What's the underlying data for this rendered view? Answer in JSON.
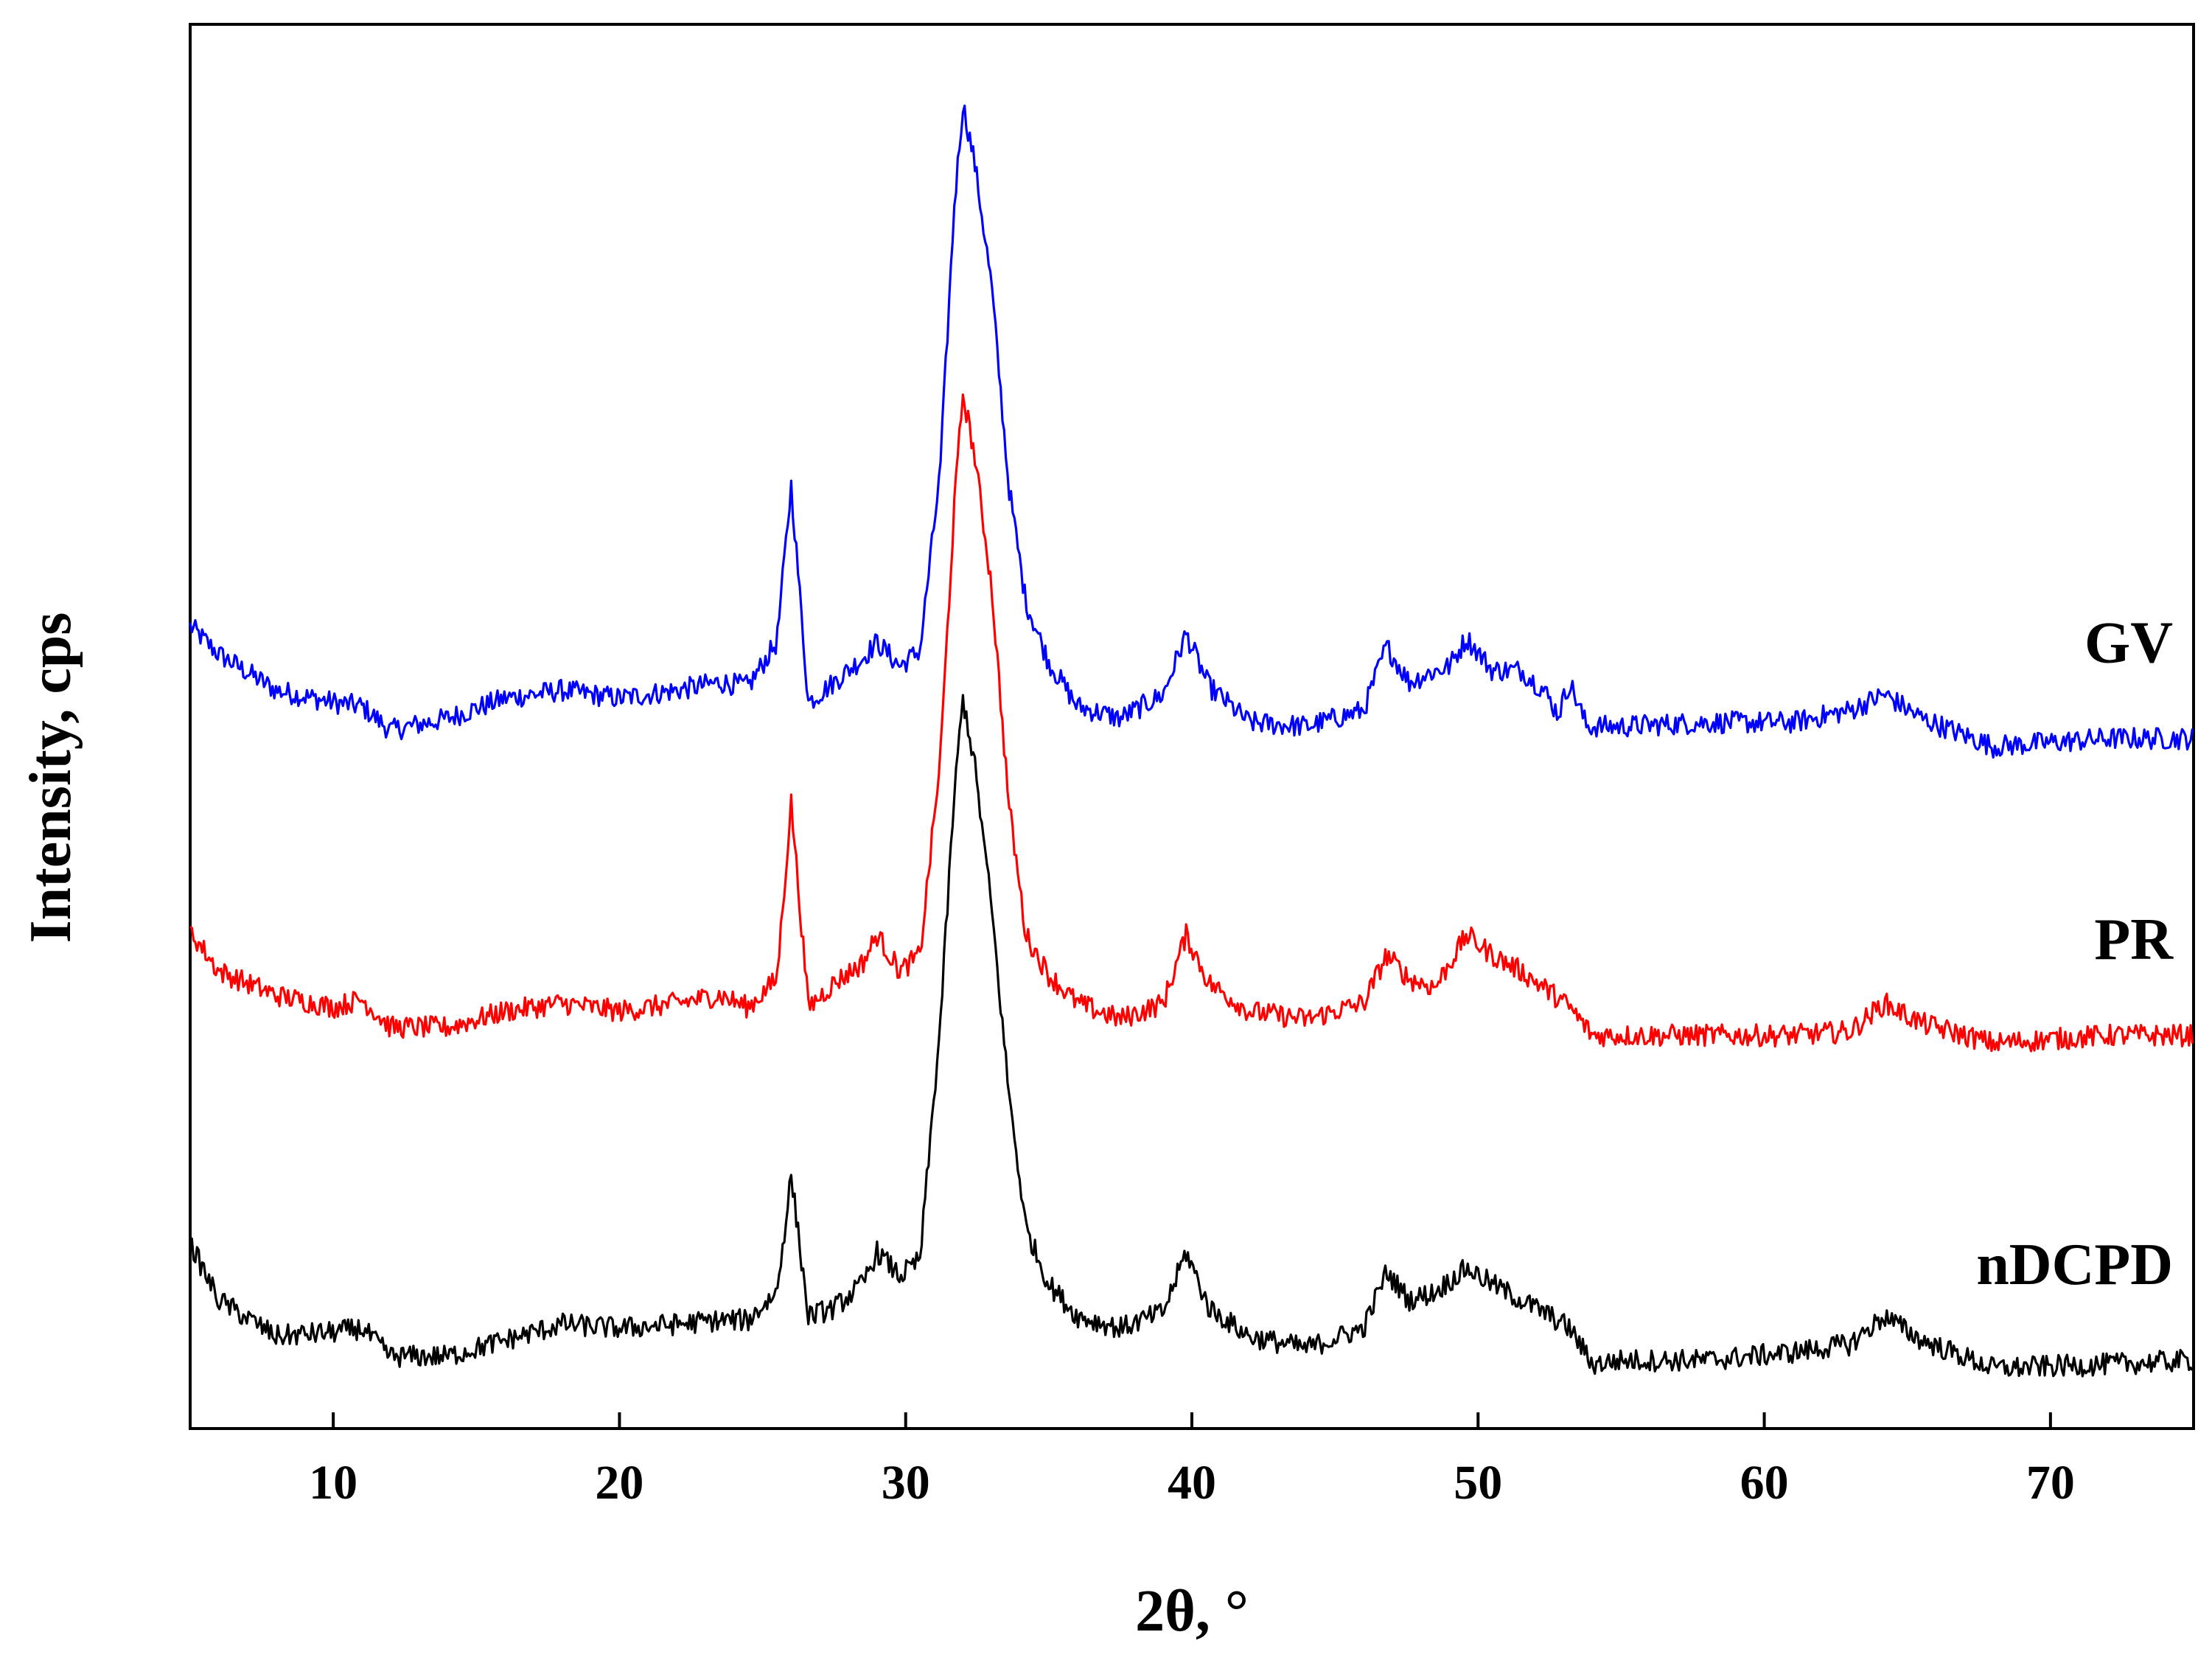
{
  "chart_data": {
    "type": "line",
    "xlabel": "2θ, °",
    "ylabel": "Intensity, cps",
    "xlim": [
      5,
      75
    ],
    "xticks": [
      10,
      20,
      30,
      40,
      50,
      60,
      70
    ],
    "yticks_shown": false,
    "grid": false,
    "legend": "none",
    "series": [
      {
        "name": "GV",
        "color": "#0000ff",
        "x": [
          5,
          6,
          8,
          10,
          11,
          12,
          14,
          16,
          18,
          20,
          22,
          23.5,
          24.5,
          25.5,
          26,
          26.6,
          27.5,
          28.5,
          29,
          29.8,
          30.5,
          31.2,
          31.7,
          32,
          32.4,
          33,
          33.6,
          34.2,
          35,
          36,
          37.5,
          39,
          39.8,
          40.6,
          42,
          44,
          46,
          46.8,
          47.6,
          48.2,
          49,
          49.6,
          50.5,
          51.5,
          52.3,
          52.8,
          53.2,
          53.8,
          55,
          58,
          61,
          63,
          64.2,
          65.5,
          68,
          72,
          75
        ],
        "y": [
          19.0,
          18.3,
          17.4,
          17.1,
          17.0,
          16.4,
          16.7,
          17.2,
          17.4,
          17.2,
          17.4,
          17.6,
          17.5,
          18.6,
          22.5,
          17.1,
          17.6,
          18.2,
          18.6,
          18.0,
          18.4,
          22.8,
          29.5,
          32.0,
          30.6,
          27.5,
          22.5,
          19.6,
          18.1,
          17.0,
          16.7,
          17.3,
          18.8,
          17.5,
          16.6,
          16.5,
          16.9,
          18.5,
          17.6,
          17.8,
          18.0,
          18.7,
          17.9,
          17.9,
          17.4,
          16.8,
          17.6,
          16.5,
          16.5,
          16.6,
          16.6,
          16.9,
          17.3,
          16.7,
          16.0,
          16.2,
          16.2
        ]
      },
      {
        "name": "PR",
        "color": "#ff0000",
        "x": [
          5,
          6,
          8,
          10,
          11,
          12,
          14,
          16,
          18,
          20,
          22,
          23.5,
          24.5,
          25.5,
          26,
          26.6,
          27.5,
          28.5,
          29,
          29.8,
          30.5,
          31.2,
          31.7,
          32,
          32.4,
          33,
          33.6,
          34.2,
          35,
          36,
          37.5,
          39,
          39.8,
          40.6,
          42,
          44,
          46,
          46.8,
          47.6,
          48.5,
          49.6,
          50.5,
          51.5,
          52.3,
          53.2,
          54,
          55,
          58,
          61,
          63,
          64.2,
          65.5,
          68,
          72,
          75
        ],
        "y": [
          11.4,
          10.4,
          9.8,
          9.5,
          9.7,
          9.0,
          9.0,
          9.4,
          9.6,
          9.4,
          9.6,
          9.8,
          9.5,
          10.2,
          14.6,
          9.5,
          10.1,
          10.6,
          11.3,
          10.4,
          10.8,
          15.6,
          22.0,
          24.8,
          23.3,
          20.0,
          14.6,
          11.3,
          10.3,
          9.6,
          9.2,
          9.6,
          11.3,
          10.1,
          9.4,
          9.2,
          9.6,
          10.8,
          10.2,
          10.0,
          11.3,
          10.8,
          10.4,
          10.0,
          9.5,
          8.8,
          8.8,
          8.8,
          8.8,
          8.9,
          9.6,
          9.1,
          8.6,
          8.8,
          8.8
        ]
      },
      {
        "name": "nDCPD",
        "color": "#000000",
        "x": [
          5,
          6,
          8,
          10,
          11,
          12,
          14,
          16,
          18,
          20,
          22,
          23.5,
          24.5,
          25.5,
          26,
          26.6,
          27.5,
          28.5,
          29,
          29.8,
          30.5,
          31.2,
          31.7,
          32,
          32.4,
          33,
          33.6,
          34.2,
          35,
          36,
          37.5,
          39,
          39.8,
          40.6,
          42,
          44,
          46,
          46.8,
          47.6,
          48.5,
          49.6,
          50.5,
          51.5,
          52.3,
          53.2,
          54,
          55,
          58,
          61,
          63,
          64.2,
          65.5,
          68,
          72,
          75
        ],
        "y": [
          3.6,
          2.2,
          1.3,
          1.4,
          1.5,
          0.8,
          0.8,
          1.2,
          1.6,
          1.5,
          1.6,
          1.7,
          1.7,
          2.4,
          5.3,
          1.8,
          2.0,
          2.6,
          3.4,
          2.8,
          3.2,
          9.0,
          14.8,
          17.2,
          15.6,
          12.0,
          7.4,
          4.0,
          2.6,
          1.8,
          1.5,
          1.9,
          3.4,
          2.0,
          1.3,
          1.0,
          1.5,
          2.9,
          2.2,
          2.4,
          3.0,
          2.6,
          2.2,
          1.9,
          1.5,
          0.6,
          0.7,
          0.7,
          0.9,
          1.1,
          1.8,
          1.2,
          0.5,
          0.6,
          0.7
        ]
      }
    ]
  }
}
